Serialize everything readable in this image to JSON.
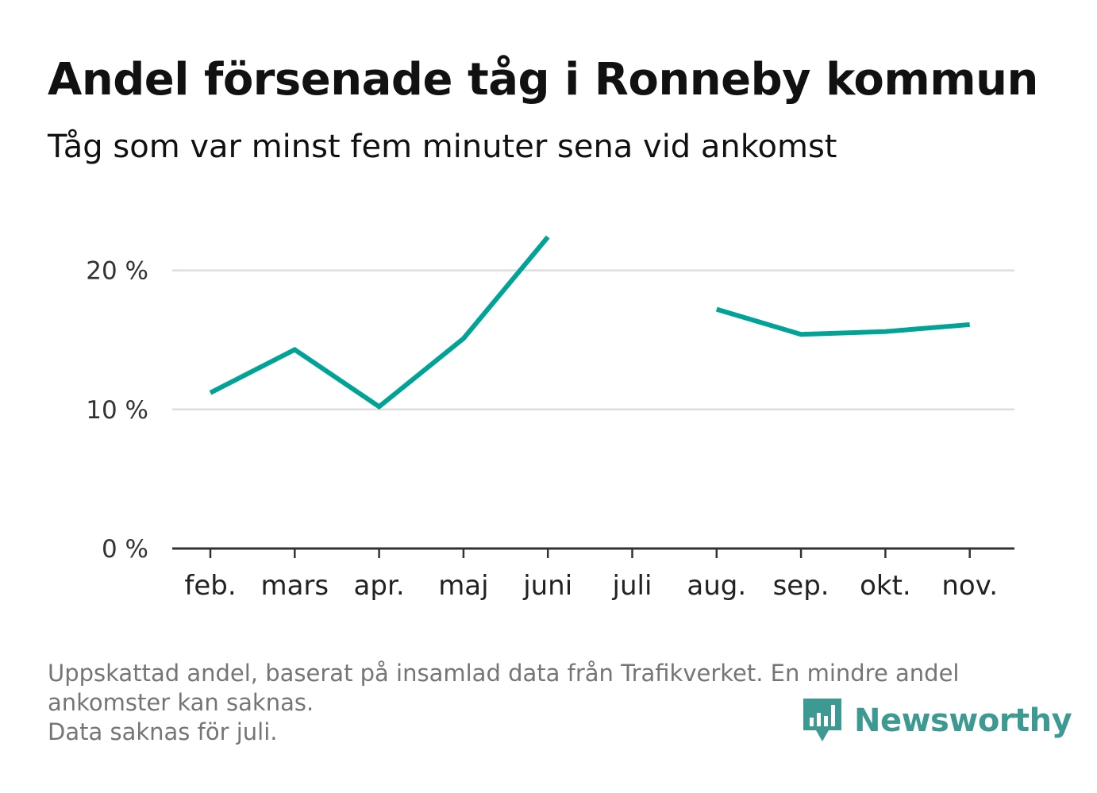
{
  "header": {
    "title": "Andel försenade tåg i Ronneby kommun",
    "subtitle": "Tåg som var minst fem minuter sena vid ankomst"
  },
  "footer": {
    "note": "Uppskattad andel, baserat på insamlad data från Trafikverket. En mindre andel\nankomster kan saknas.\nData saknas för juli.",
    "brand": "Newsworthy"
  },
  "colors": {
    "series": "#00a396",
    "brand": "#3d9a93",
    "grid": "#dddddd",
    "axis": "#333333"
  },
  "chart_data": {
    "type": "line",
    "categories": [
      "feb.",
      "mars",
      "apr.",
      "maj",
      "juni",
      "juli",
      "aug.",
      "sep.",
      "okt.",
      "nov."
    ],
    "series": [
      {
        "values": [
          11.2,
          14.3,
          10.2,
          15.1,
          22.4,
          null,
          17.2,
          15.4,
          15.6,
          16.1
        ]
      }
    ],
    "ylim": [
      0,
      25
    ],
    "yticks": [
      0,
      10,
      20
    ],
    "ytick_labels": [
      "0 %",
      "10 %",
      "20 %"
    ],
    "xlabel": "",
    "ylabel": "",
    "grid": true,
    "legend": false
  }
}
